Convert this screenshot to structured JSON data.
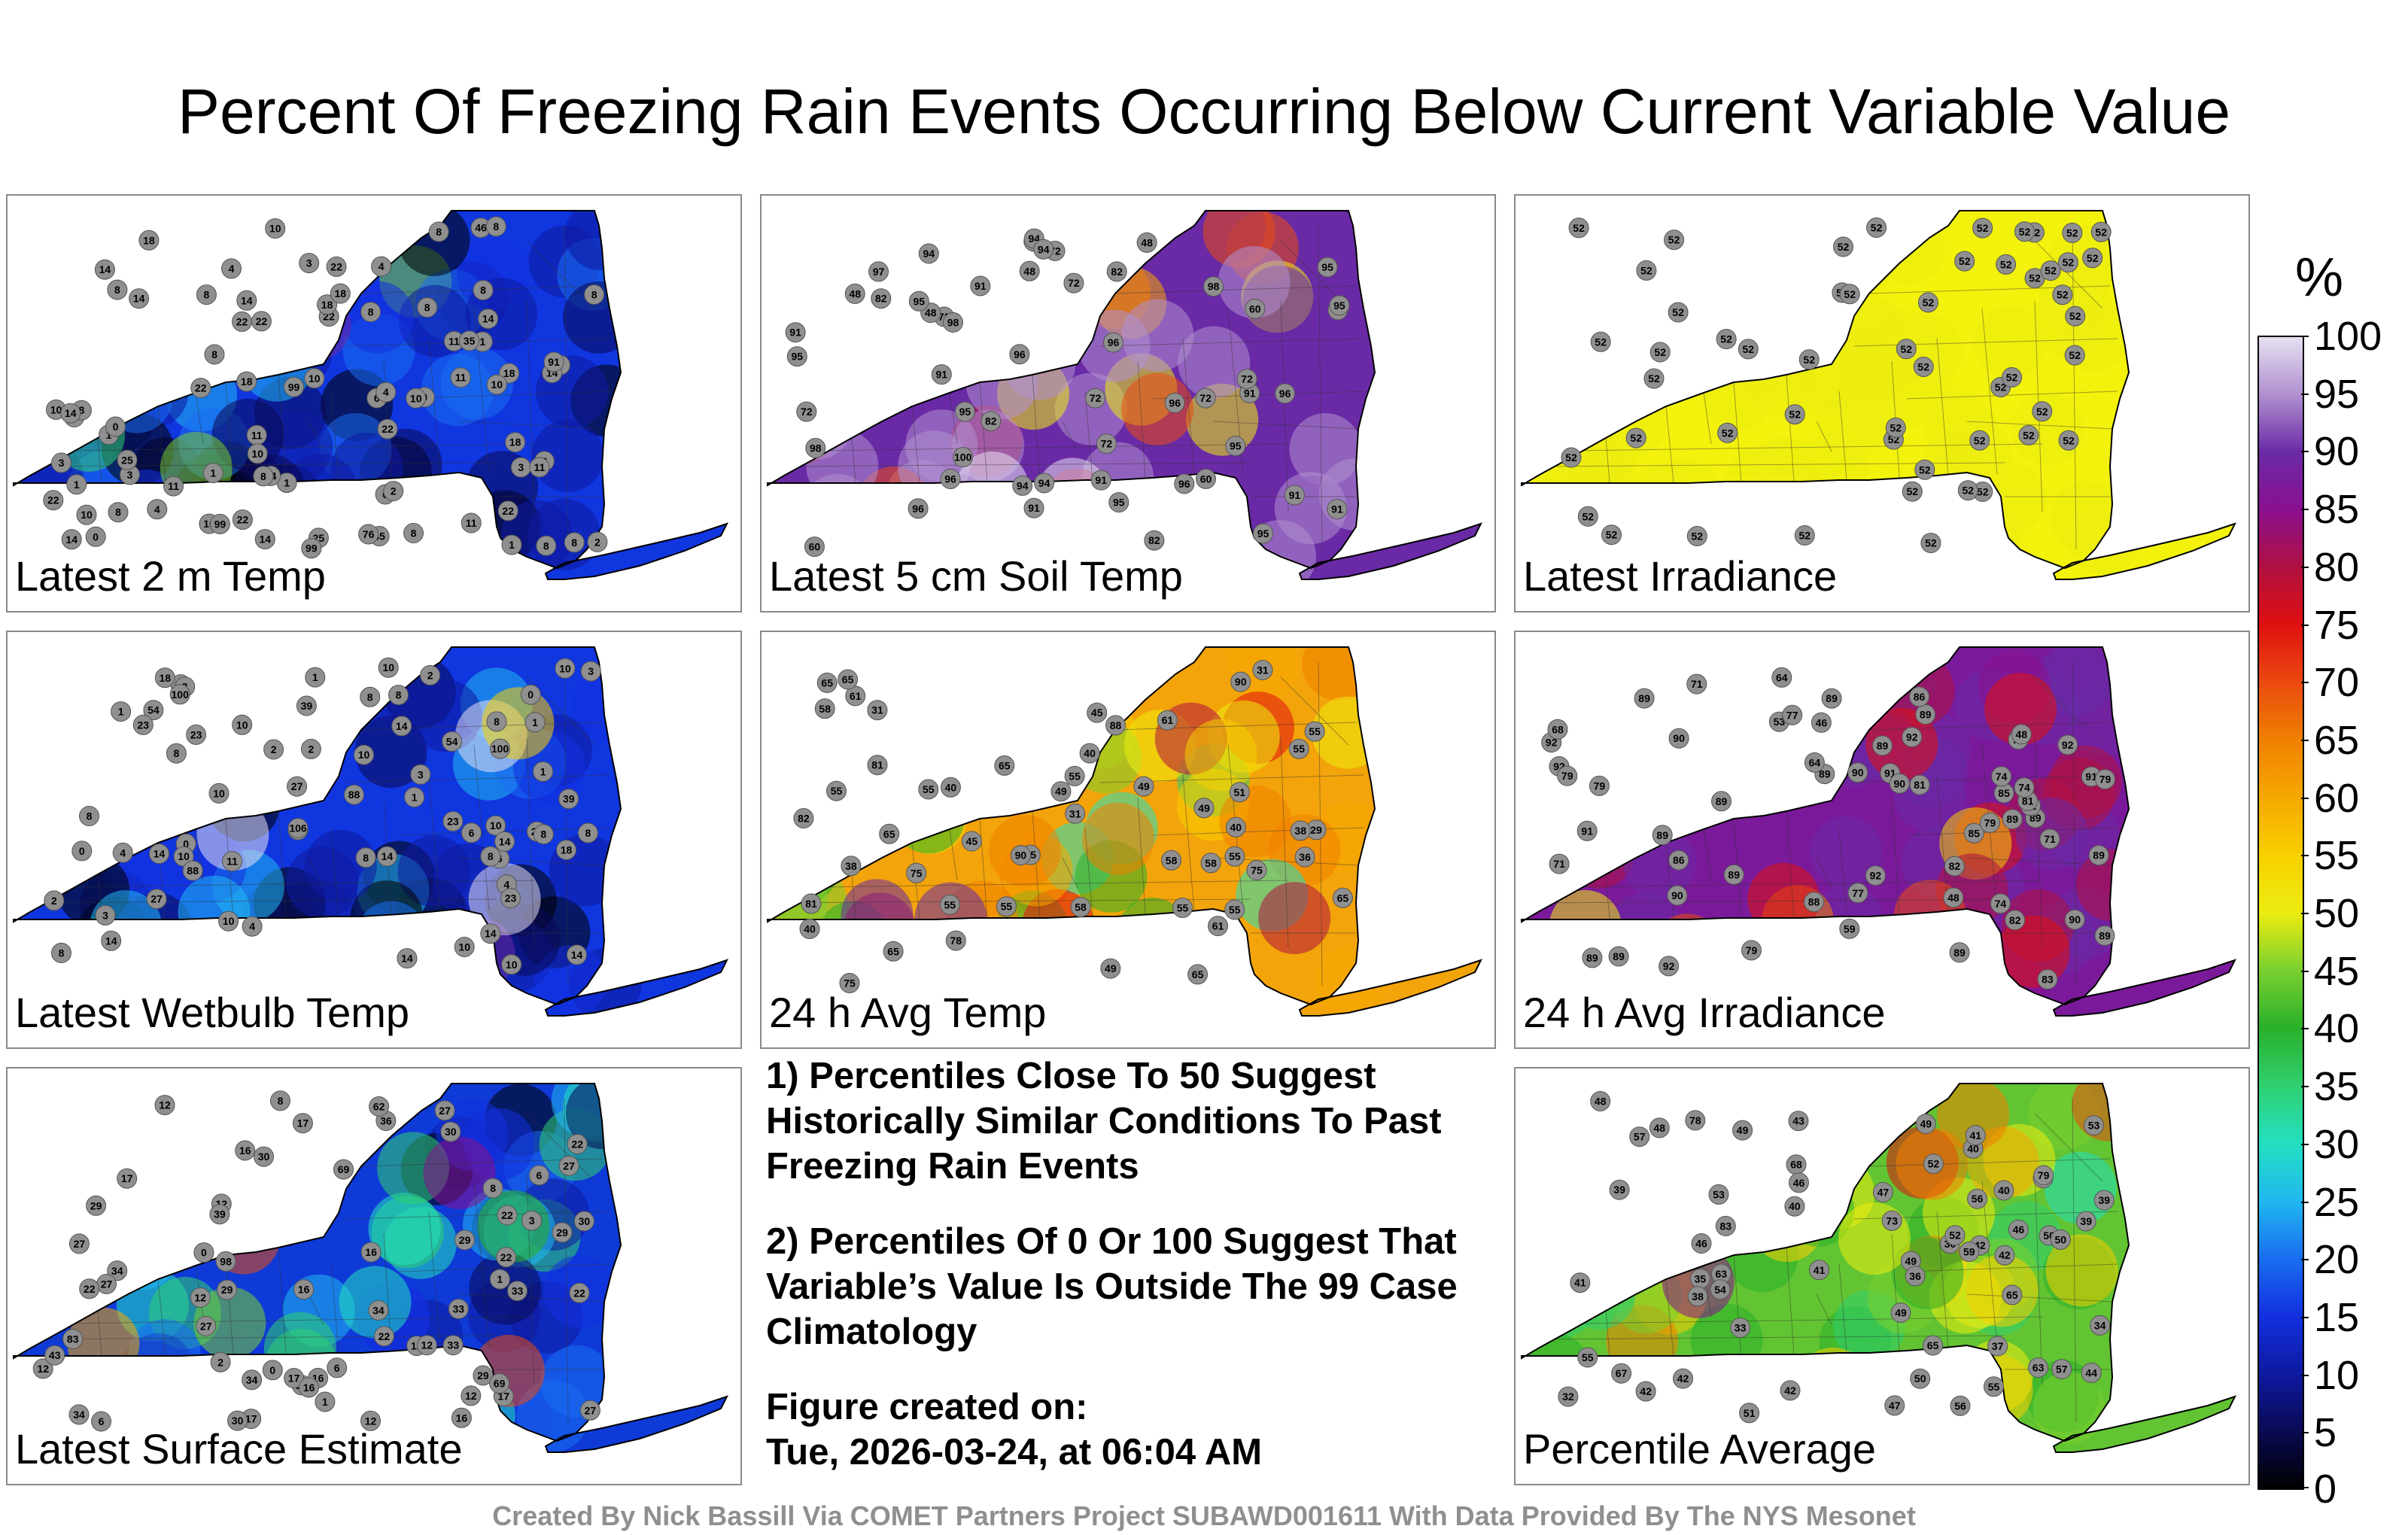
{
  "title": "Percent Of Freezing Rain Events Occurring Below Current Variable Value",
  "colorbar": {
    "unit": "%",
    "ticks": [
      "0",
      "5",
      "10",
      "15",
      "20",
      "25",
      "30",
      "35",
      "40",
      "45",
      "50",
      "55",
      "60",
      "65",
      "70",
      "75",
      "80",
      "85",
      "90",
      "95",
      "100"
    ],
    "colors": [
      "#000000",
      "#0a0a55",
      "#0e1aa0",
      "#1230e0",
      "#1a6ef0",
      "#20b8f0",
      "#22e0c0",
      "#30d070",
      "#2ab02a",
      "#7ad030",
      "#ecec10",
      "#f8d000",
      "#f6a800",
      "#f08000",
      "#ea4a10",
      "#e01010",
      "#b01040",
      "#8a1090",
      "#6a2aa6",
      "#b090d0",
      "#e6e0f0"
    ]
  },
  "panels": [
    {
      "label": "Latest 2 m Temp",
      "scheme": "cold",
      "values": [
        10,
        8,
        2,
        6,
        8,
        0,
        1,
        1,
        2,
        22,
        11,
        2,
        0,
        1,
        4,
        10,
        1,
        3,
        10,
        8,
        22,
        46,
        18,
        14,
        0,
        8,
        8,
        14,
        11,
        11,
        22,
        25,
        25,
        10,
        8,
        6,
        8,
        10,
        22,
        18,
        8,
        10,
        14,
        11,
        14,
        10,
        14,
        8,
        4,
        1,
        22,
        6,
        8,
        3,
        8,
        14,
        4,
        22,
        2,
        22,
        14,
        11,
        8,
        18,
        8,
        4,
        18,
        11,
        8,
        3,
        8,
        18,
        10,
        14,
        14,
        18,
        1,
        22,
        3,
        22,
        99,
        35,
        45,
        99,
        76,
        91,
        99
      ]
    },
    {
      "label": "Latest 5 cm Soil Temp",
      "scheme": "soil",
      "values": [
        60,
        72,
        60,
        48,
        72,
        48,
        60,
        95,
        72,
        82,
        60,
        48,
        72,
        48,
        82,
        48,
        72,
        91,
        91,
        91,
        91,
        95,
        94,
        95,
        94,
        91,
        94,
        91,
        72,
        94,
        96,
        95,
        91,
        95,
        82,
        72,
        91,
        96,
        95,
        72,
        94,
        95,
        95,
        82,
        96,
        96,
        96,
        96,
        96,
        97,
        98,
        98,
        100,
        98
      ]
    },
    {
      "label": "Latest Irradiance",
      "scheme": "irr",
      "values": [
        52,
        52,
        52,
        52,
        52,
        52,
        52,
        52,
        52,
        52,
        52,
        52,
        52,
        52,
        52,
        52,
        52,
        52,
        52,
        52,
        52,
        52,
        52,
        52,
        52,
        52,
        52,
        52,
        52,
        52,
        52,
        52,
        52,
        52,
        52,
        52,
        52,
        52,
        52,
        52,
        52,
        52,
        52,
        52,
        52,
        52,
        52,
        52,
        52,
        52,
        52,
        52
      ]
    },
    {
      "label": "Latest Wetbulb Temp",
      "scheme": "cold",
      "values": [
        10,
        8,
        2,
        6,
        8,
        0,
        1,
        1,
        2,
        23,
        10,
        2,
        0,
        1,
        4,
        10,
        1,
        3,
        10,
        8,
        23,
        27,
        54,
        14,
        0,
        8,
        8,
        23,
        14,
        11,
        10,
        10,
        27,
        14,
        10,
        14,
        8,
        4,
        1,
        23,
        3,
        6,
        8,
        3,
        8,
        14,
        4,
        39,
        2,
        23,
        14,
        10,
        8,
        18,
        8,
        39,
        18,
        10,
        14,
        8,
        14,
        14,
        10,
        3,
        100,
        106,
        54,
        88,
        100,
        88
      ]
    },
    {
      "label": "24 h Avg Temp",
      "scheme": "avgt",
      "values": [
        61,
        55,
        45,
        40,
        55,
        58,
        65,
        31,
        29,
        31,
        36,
        38,
        40,
        38,
        49,
        55,
        75,
        65,
        65,
        75,
        58,
        65,
        55,
        49,
        61,
        51,
        65,
        45,
        40,
        40,
        55,
        58,
        45,
        31,
        49,
        55,
        55,
        65,
        49,
        65,
        55,
        61,
        75,
        78,
        81,
        81,
        82,
        88,
        90,
        90,
        55,
        55,
        58
      ]
    },
    {
      "label": "24 h Avg Irradiance",
      "scheme": "avgi",
      "values": [
        91,
        89,
        86,
        92,
        91,
        92,
        89,
        90,
        89,
        91,
        90,
        89,
        89,
        92,
        92,
        89,
        89,
        89,
        89,
        89,
        90,
        89,
        90,
        89,
        85,
        92,
        92,
        92,
        82,
        81,
        79,
        88,
        89,
        85,
        79,
        77,
        79,
        82,
        86,
        71,
        79,
        89,
        81,
        79,
        89,
        53,
        48,
        64,
        74,
        74,
        71,
        79,
        74,
        46,
        64,
        59,
        77,
        68,
        48,
        71,
        90,
        83
      ]
    },
    {
      "label": "Latest Surface Estimate",
      "scheme": "surf",
      "values": [
        12,
        0,
        1,
        6,
        12,
        2,
        6,
        30,
        29,
        12,
        0,
        1,
        22,
        27,
        17,
        98,
        34,
        12,
        33,
        29,
        12,
        12,
        30,
        16,
        22,
        8,
        16,
        27,
        29,
        17,
        16,
        16,
        34,
        22,
        36,
        27,
        30,
        29,
        22,
        17,
        33,
        29,
        17,
        6,
        3,
        8,
        27,
        16,
        12,
        27,
        27,
        17,
        30,
        22,
        12,
        16,
        22,
        69,
        34,
        29,
        33,
        39,
        43,
        62,
        69,
        34,
        83
      ]
    },
    {
      "label": "Percentile Average",
      "scheme": "avgp",
      "values": [
        42,
        39,
        40,
        35,
        38,
        40,
        43,
        36,
        32,
        33,
        46,
        49,
        42,
        46,
        37,
        41,
        52,
        48,
        68,
        56,
        65,
        63,
        51,
        47,
        52,
        44,
        46,
        39,
        42,
        36,
        53,
        50,
        55,
        54,
        49,
        39,
        41,
        34,
        42,
        49,
        48,
        40,
        42,
        50,
        53,
        47,
        41,
        49,
        56,
        59,
        50,
        55,
        57,
        53,
        57,
        63,
        65,
        73,
        67,
        78,
        79,
        83
      ]
    }
  ],
  "notes": [
    "1) Percentiles Close To 50 Suggest Historically Similar Conditions To Past Freezing Rain Events",
    "2) Percentiles Of 0 Or 100 Suggest That Variable’s Value Is Outside The 99 Case Climatology"
  ],
  "figure_created": {
    "label": "Figure created on:",
    "value": "Tue, 2026-03-24, at 06:04 AM"
  },
  "credit": "Created By Nick Bassill Via COMET Partners Project SUBAWD001611 With Data Provided By The NYS Mesonet"
}
